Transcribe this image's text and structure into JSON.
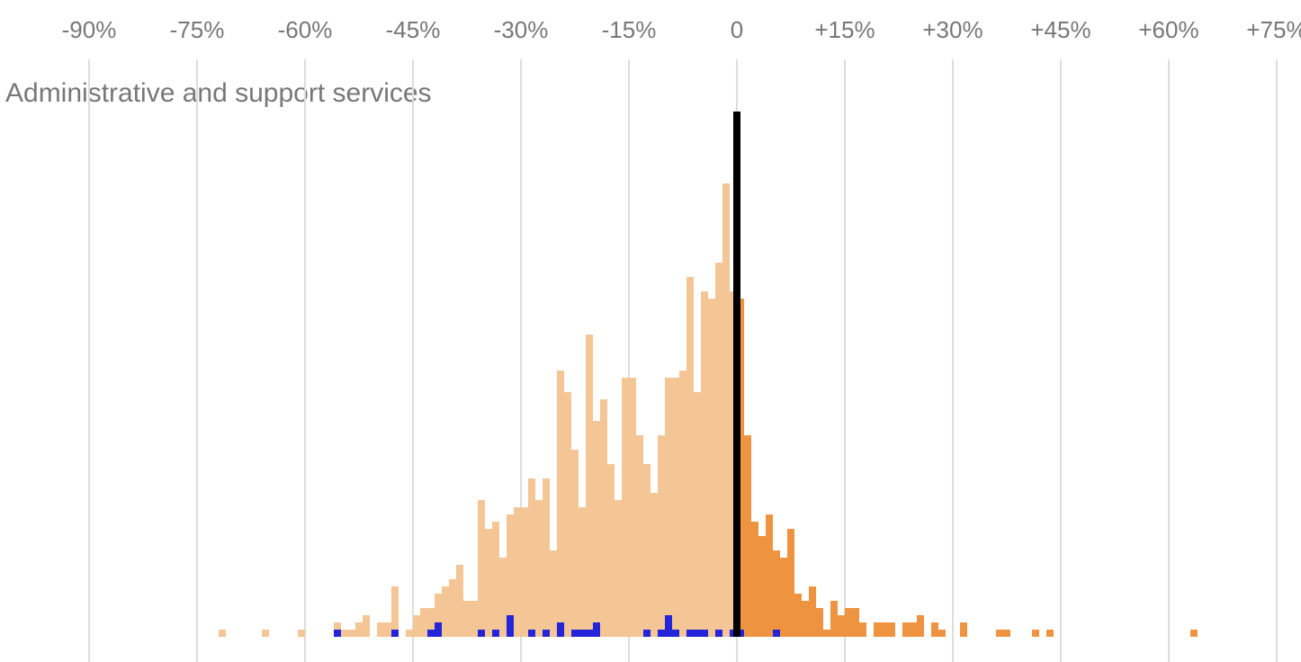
{
  "chart_data": {
    "type": "histogram",
    "title": "Administrative and support services",
    "xlim": [
      -102.375,
      78.375
    ],
    "xticks": [
      {
        "value": -90,
        "label": "-90%"
      },
      {
        "value": -75,
        "label": "-75%"
      },
      {
        "value": -60,
        "label": "-60%"
      },
      {
        "value": -45,
        "label": "-45%"
      },
      {
        "value": -30,
        "label": "-30%"
      },
      {
        "value": -15,
        "label": "-15%"
      },
      0,
      {
        "value": 15,
        "label": "+15%"
      },
      {
        "value": 30,
        "label": "+30%"
      },
      {
        "value": 45,
        "label": "+45%"
      },
      {
        "value": 60,
        "label": "+60%"
      },
      {
        "value": 75,
        "label": "+75%"
      }
    ],
    "ylim": [
      0,
      73
    ],
    "grid": true,
    "reference_x": 0,
    "reference_color": "#000000",
    "bins": [
      -72,
      -71,
      -70,
      -69,
      -68,
      -67,
      -66,
      -65,
      -64,
      -63,
      -62,
      -61,
      -60,
      -59,
      -58,
      -57,
      -56,
      -55,
      -54,
      -53,
      -52,
      -51,
      -50,
      -49,
      -48,
      -47,
      -46,
      -45,
      -44,
      -43,
      -42,
      -41,
      -40,
      -39,
      -38,
      -37,
      -36,
      -35,
      -34,
      -33,
      -32,
      -31,
      -30,
      -29,
      -28,
      -27,
      -26,
      -25,
      -24,
      -23,
      -22,
      -21,
      -20,
      -19,
      -18,
      -17,
      -16,
      -15,
      -14,
      -13,
      -12,
      -11,
      -10,
      -9,
      -8,
      -7,
      -6,
      -5,
      -4,
      -3,
      -2,
      -1,
      0,
      1,
      2,
      3,
      4,
      5,
      6,
      7,
      8,
      9,
      10,
      11,
      12,
      13,
      14,
      15,
      16,
      17,
      18,
      19,
      20,
      21,
      22,
      23,
      24,
      25,
      26,
      27,
      28,
      29,
      30,
      31,
      32,
      33,
      34,
      35,
      36,
      37,
      38,
      39,
      40,
      41,
      42,
      43,
      44,
      45,
      46,
      47,
      48,
      49,
      50,
      51,
      52,
      53,
      54,
      55,
      56,
      57,
      58,
      59,
      60,
      61,
      62,
      63,
      64
    ],
    "series": [
      {
        "color": "#f4c595",
        "values": [
          1,
          0,
          0,
          0,
          0,
          0,
          1,
          0,
          0,
          0,
          0,
          1,
          0,
          0,
          0,
          0,
          2,
          1,
          1,
          2,
          3,
          0,
          2,
          2,
          7,
          0,
          1,
          3,
          4,
          4,
          6,
          7,
          8,
          10,
          5,
          5,
          19,
          15,
          16,
          11,
          17,
          18,
          18,
          22,
          19,
          22,
          12,
          37,
          34,
          26,
          18,
          42,
          30,
          33,
          24,
          19,
          36,
          36,
          28,
          24,
          20,
          28,
          36,
          36,
          37,
          50,
          34,
          48,
          47,
          52,
          63,
          48,
          0,
          0,
          0,
          0,
          0,
          0,
          0,
          0,
          0,
          0,
          0,
          0,
          0,
          0,
          0,
          0,
          0,
          0,
          0,
          0,
          0,
          0,
          0,
          0,
          0,
          0,
          0,
          0,
          0,
          0,
          0,
          0,
          0,
          0,
          0,
          0,
          0,
          0,
          0,
          0,
          0,
          0,
          0,
          0,
          0,
          0,
          0,
          0,
          0,
          0,
          0,
          0,
          0,
          0,
          0,
          0,
          0,
          0,
          0,
          0,
          0,
          0,
          0,
          0,
          0,
          0,
          0,
          0
        ]
      },
      {
        "color": "#ee9440",
        "values": [
          0,
          0,
          0,
          0,
          0,
          0,
          0,
          0,
          0,
          0,
          0,
          0,
          0,
          0,
          0,
          0,
          0,
          0,
          0,
          0,
          0,
          0,
          0,
          0,
          0,
          0,
          0,
          0,
          0,
          0,
          0,
          0,
          0,
          0,
          0,
          0,
          0,
          0,
          0,
          0,
          0,
          0,
          0,
          0,
          0,
          0,
          0,
          0,
          0,
          0,
          0,
          0,
          0,
          0,
          0,
          0,
          0,
          0,
          0,
          0,
          0,
          0,
          0,
          0,
          0,
          0,
          0,
          0,
          0,
          0,
          0,
          0,
          47,
          28,
          16,
          14,
          17,
          12,
          11,
          15,
          6,
          5,
          7,
          4,
          1,
          5,
          3,
          4,
          4,
          2,
          0,
          2,
          2,
          2,
          0,
          2,
          2,
          3,
          0,
          2,
          1,
          0,
          0,
          2,
          0,
          0,
          0,
          0,
          1,
          1,
          0,
          0,
          0,
          1,
          0,
          1,
          0,
          0,
          0,
          0,
          0,
          0,
          0,
          0,
          0,
          0,
          0,
          0,
          0,
          0,
          0,
          0,
          0,
          0,
          0,
          1
        ]
      },
      {
        "color": "#2424d8",
        "values": [
          0,
          0,
          0,
          0,
          0,
          0,
          0,
          0,
          0,
          0,
          0,
          0,
          0,
          0,
          0,
          0,
          1,
          0,
          0,
          0,
          0,
          0,
          0,
          0,
          1,
          0,
          0,
          0,
          0,
          1,
          2,
          0,
          0,
          0,
          0,
          0,
          1,
          0,
          1,
          0,
          3,
          0,
          0,
          1,
          0,
          1,
          0,
          2,
          0,
          1,
          1,
          1,
          2,
          0,
          0,
          0,
          0,
          0,
          0,
          1,
          0,
          1,
          3,
          1,
          0,
          1,
          1,
          1,
          0,
          1,
          0,
          1,
          1,
          0,
          0,
          0,
          0,
          1,
          0,
          0,
          0,
          0,
          0,
          0,
          0,
          0,
          0,
          0,
          0,
          0,
          0,
          0,
          0,
          0,
          0,
          0,
          0,
          0,
          0,
          0,
          0,
          0,
          0,
          0,
          0,
          0,
          0,
          0,
          0,
          0,
          0,
          0,
          0,
          0,
          0,
          0,
          0,
          0,
          0,
          0,
          0,
          0,
          0,
          0,
          0,
          0,
          0,
          0,
          0,
          0,
          0,
          0,
          0,
          0,
          0,
          0
        ]
      }
    ]
  }
}
